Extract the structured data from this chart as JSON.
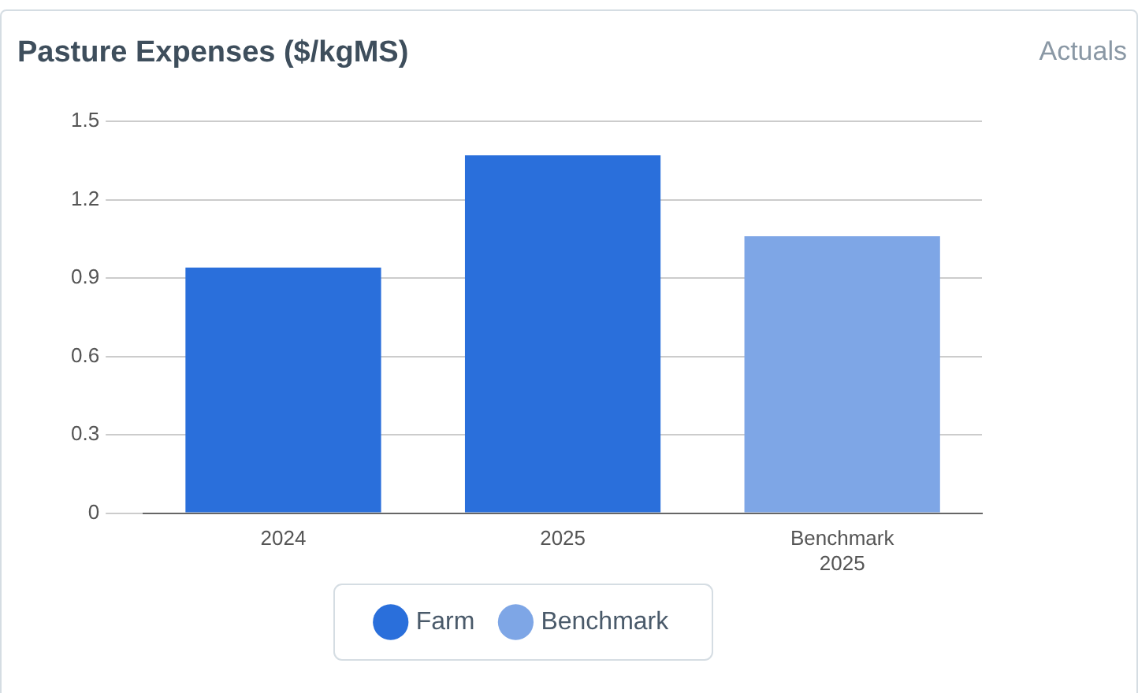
{
  "chart_data": {
    "type": "bar",
    "title": "Pasture Expenses ($/kgMS)",
    "subtitle": "Actuals",
    "categories": [
      "2024",
      "2025",
      "Benchmark 2025"
    ],
    "series": [
      {
        "name": "Farm",
        "color": "#2a6fdb",
        "values": [
          0.94,
          1.37,
          null
        ]
      },
      {
        "name": "Benchmark",
        "color": "#7ea6e6",
        "values": [
          null,
          null,
          1.06
        ]
      }
    ],
    "ylim": [
      0,
      1.5
    ],
    "yticks": [
      0,
      0.3,
      0.6,
      0.9,
      1.2,
      1.5
    ],
    "grid": "y",
    "legend": "bottom"
  }
}
